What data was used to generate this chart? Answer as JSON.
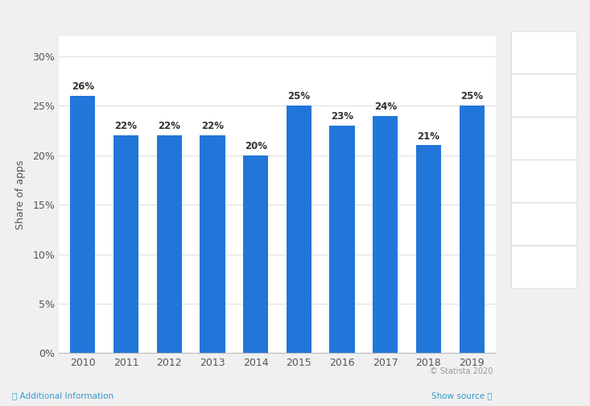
{
  "years": [
    "2010",
    "2011",
    "2012",
    "2013",
    "2014",
    "2015",
    "2016",
    "2017",
    "2018",
    "2019"
  ],
  "values": [
    26,
    22,
    22,
    22,
    20,
    25,
    23,
    24,
    21,
    25
  ],
  "bar_color": "#2176d9",
  "ylabel": "Share of apps",
  "yticks": [
    0,
    5,
    10,
    15,
    20,
    25,
    30
  ],
  "ytick_labels": [
    "0%",
    "5%",
    "10%",
    "15%",
    "20%",
    "25%",
    "30%"
  ],
  "ylim": [
    0,
    32
  ],
  "background_color": "#f0f0f0",
  "plot_bg_color": "#ffffff",
  "sidebar_bg": "#f0f0f0",
  "grid_color": "#e0e0e0",
  "bar_label_fontsize": 8.5,
  "bar_label_color": "#333333",
  "axis_label_fontsize": 9,
  "tick_fontsize": 9,
  "footer_statista": "© Statista 2020",
  "footer_left": "ⓘ Additional Information",
  "footer_right": "Show source ⓘ",
  "footer_color": "#999999",
  "footer_blue": "#3399cc"
}
